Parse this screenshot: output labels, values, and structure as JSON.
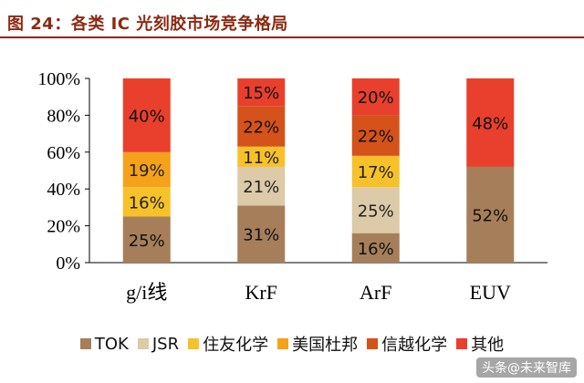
{
  "title": "图 24：各类 IC 光刻胶市场竞争格局",
  "watermark": "头条@未来智库",
  "colors": {
    "title": "#8b2a12",
    "TOK": "#a67f5a",
    "JSR": "#dccaa8",
    "住友化学": "#f7c12a",
    "美国杜邦": "#f5a11a",
    "信越化学": "#d5521a",
    "其他": "#e8402c"
  },
  "chart_data": {
    "type": "bar",
    "stacked": true,
    "categories": [
      "g/i线",
      "KrF",
      "ArF",
      "EUV"
    ],
    "series": [
      {
        "name": "TOK",
        "values": [
          25,
          31,
          16,
          52
        ]
      },
      {
        "name": "JSR",
        "values": [
          0,
          21,
          25,
          0
        ]
      },
      {
        "name": "住友化学",
        "values": [
          16,
          11,
          17,
          0
        ]
      },
      {
        "name": "美国杜邦",
        "values": [
          19,
          0,
          0,
          0
        ]
      },
      {
        "name": "信越化学",
        "values": [
          0,
          22,
          22,
          0
        ]
      },
      {
        "name": "其他",
        "values": [
          40,
          15,
          20,
          48
        ]
      }
    ],
    "ylim": [
      0,
      100
    ],
    "yticks": [
      "0%",
      "20%",
      "40%",
      "60%",
      "80%",
      "100%"
    ],
    "grid": false,
    "legend_position": "bottom"
  }
}
